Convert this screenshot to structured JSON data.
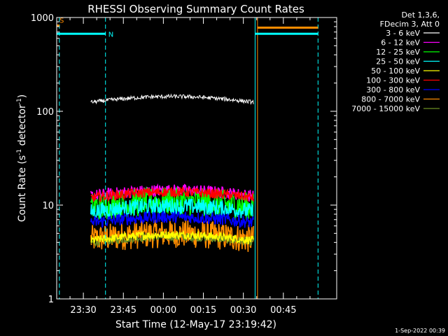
{
  "chart_data": {
    "type": "line",
    "title": "RHESSI Observing Summary Count Rates",
    "xlabel": "Start Time (12-May-17 23:19:42)",
    "ylabel_main": "Count Rate (s",
    "ylabel_sup1": "-1",
    "ylabel_mid": " detector",
    "ylabel_sup2": "-1",
    "ylabel_end": ")",
    "yscale": "log",
    "ylim": [
      1,
      1000
    ],
    "xlim_minutes": [
      -10,
      95
    ],
    "yticks": [
      {
        "value": 1,
        "label": "1"
      },
      {
        "value": 10,
        "label": "10"
      },
      {
        "value": 100,
        "label": "100"
      },
      {
        "value": 1000,
        "label": "1000"
      }
    ],
    "xticks": [
      {
        "value": 0,
        "label": "23:30"
      },
      {
        "value": 15,
        "label": "23:45"
      },
      {
        "value": 30,
        "label": "00:00"
      },
      {
        "value": 45,
        "label": "00:15"
      },
      {
        "value": 60,
        "label": "00:30"
      },
      {
        "value": 75,
        "label": "00:45"
      }
    ],
    "legend": {
      "header": [
        "Det 1,3,6,",
        "FDecim 3, Att 0"
      ],
      "placement": "right"
    },
    "series": [
      {
        "name": "3 - 6 keV",
        "color": "#ffffff",
        "t_start": 2.8,
        "t_end": 63.8,
        "level": 125,
        "noise": 0.05
      },
      {
        "name": "6 - 12 keV",
        "color": "#ff00ff",
        "t_start": 2.8,
        "t_end": 63.8,
        "level": 12.5,
        "noise": 0.15
      },
      {
        "name": "12 - 25 keV",
        "color": "#00ff00",
        "t_start": 2.8,
        "t_end": 63.8,
        "level": 9.5,
        "noise": 0.35
      },
      {
        "name": "25 - 50 keV",
        "color": "#00ffff",
        "t_start": 2.8,
        "t_end": 63.8,
        "level": 8.5,
        "noise": 0.2
      },
      {
        "name": "50 - 100 keV",
        "color": "#ffff00",
        "t_start": 2.8,
        "t_end": 63.8,
        "level": 4.2,
        "noise": 0.1
      },
      {
        "name": "100 - 300 keV",
        "color": "#ff0000",
        "t_start": 2.8,
        "t_end": 63.8,
        "level": 12,
        "noise": 0.12
      },
      {
        "name": "300 - 800 keV",
        "color": "#0000ff",
        "t_start": 2.8,
        "t_end": 63.8,
        "level": 6.5,
        "noise": 0.15
      },
      {
        "name": "800 - 7000 keV",
        "color": "#ff8c00",
        "t_start": 2.8,
        "t_end": 63.8,
        "level": 4.3,
        "noise": 0.35
      },
      {
        "name": "7000 - 15000 keV",
        "color": "#6b8e23",
        "t_start": 2.8,
        "t_end": 63.8,
        "level": 4.0,
        "noise": 0.1
      }
    ],
    "flag_lines": [
      {
        "label": "S",
        "color": "#ff8c00",
        "t_start": -10,
        "t_end": -9,
        "value": 820
      },
      {
        "label": "N",
        "color": "#00ffff",
        "t_start": -10,
        "t_end": 8.3,
        "value": 670
      },
      {
        "label": "",
        "color": "#00ffff",
        "t_start": 64.4,
        "t_end": 88,
        "value": 670
      },
      {
        "label": "",
        "color": "#ff8c00",
        "t_start": 65.3,
        "t_end": 88,
        "value": 780
      }
    ],
    "vertical_lines": [
      {
        "t": -9,
        "color": "#00ffff",
        "style": "dash"
      },
      {
        "t": 8.3,
        "color": "#00ffff",
        "style": "dash"
      },
      {
        "t": 64.4,
        "color": "#00ffff",
        "style": "solid"
      },
      {
        "t": 65.3,
        "color": "#ff8c00",
        "style": "solid"
      },
      {
        "t": 88,
        "color": "#00ffff",
        "style": "dash"
      }
    ],
    "footer": "1-Sep-2022 00:39"
  }
}
